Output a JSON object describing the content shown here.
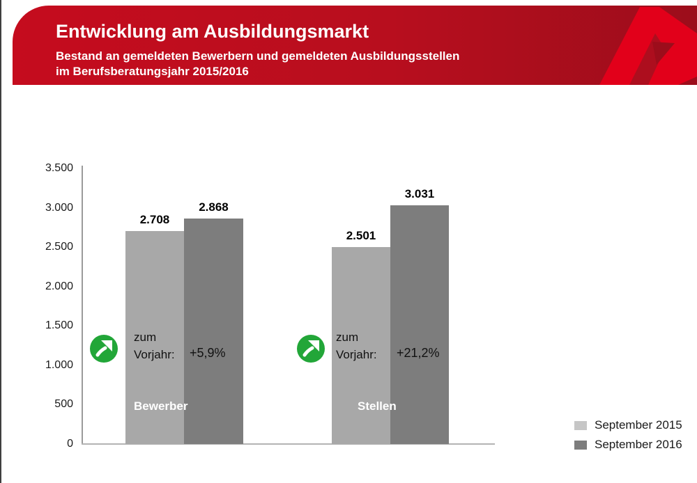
{
  "header": {
    "title": "Entwicklung am Ausbildungsmarkt",
    "subtitle_line1": "Bestand an gemeldeten Bewerbern und gemeldeten Ausbildungsstellen",
    "subtitle_line2": "im Berufsberatungsjahr 2015/2016",
    "bg_left": "#c50c1e",
    "bg_mid": "#b80e1e",
    "bg_right": "#9c0d1b",
    "logo": {
      "name": "bundesagentur-fuer-arbeit-a-logo",
      "main_color": "#e2001a",
      "shadow_color": "#ad0e1e",
      "counter_color": "#9c0d1b"
    }
  },
  "chart_data": {
    "type": "bar",
    "title": "Bestand an gemeldeten Bewerbern und gemeldeten Ausbildungsstellen im Berufsberatungsjahr 2015/2016",
    "categories": [
      "Bewerber",
      "Stellen"
    ],
    "series": [
      {
        "name": "September 2015",
        "values": [
          2708,
          2501
        ],
        "labels": [
          "2.708",
          "2.501"
        ],
        "bar_color": "#a8a8a8"
      },
      {
        "name": "September 2016",
        "values": [
          2868,
          3031
        ],
        "labels": [
          "2.868",
          "3.031"
        ],
        "bar_color": "#7d7d7d"
      }
    ],
    "annotations": [
      {
        "label_line1": "zum",
        "label_line2": "Vorjahr:",
        "value": "+5,9%",
        "icon": "trend-up-green-circle"
      },
      {
        "label_line1": "zum",
        "label_line2": "Vorjahr:",
        "value": "+21,2%",
        "icon": "trend-up-green-circle"
      }
    ],
    "y_ticks": [
      "3.500",
      "3.000",
      "2.500",
      "2.000",
      "1.500",
      "1.000",
      "500",
      "0"
    ],
    "y_tick_values": [
      3500,
      3000,
      2500,
      2000,
      1500,
      1000,
      500,
      0
    ],
    "ylim": [
      0,
      3500
    ],
    "grid": false,
    "legend_position": "bottom-right"
  },
  "legend": {
    "items": [
      {
        "label": "September 2015",
        "color": "#c6c6c6"
      },
      {
        "label": "September 2016",
        "color": "#7d7d7d"
      }
    ]
  },
  "icons": {
    "trend_up": {
      "circle_color": "#22a638",
      "arrow_color": "#ffffff"
    }
  }
}
